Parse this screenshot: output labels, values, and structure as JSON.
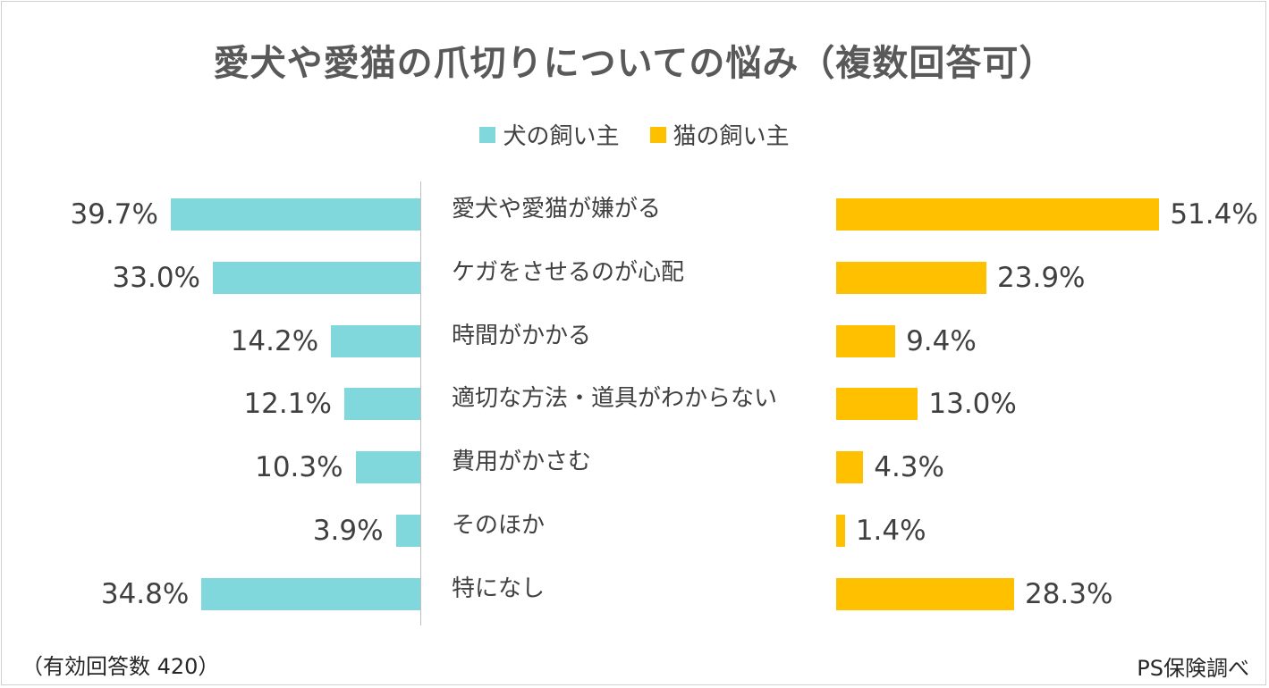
{
  "chart_data": {
    "type": "bar",
    "orientation": "horizontal-butterfly",
    "title": "愛犬や愛猫の爪切りについての悩み（複数回答可）",
    "categories": [
      "愛犬や愛猫が嫌がる",
      "ケガをさせるのが心配",
      "時間がかかる",
      "適切な方法・道具がわからない",
      "費用がかさむ",
      "そのほか",
      "特になし"
    ],
    "series": [
      {
        "name": "犬の飼い主",
        "color": "#81d8dc",
        "values": [
          39.7,
          33.0,
          14.2,
          12.1,
          10.3,
          3.9,
          34.8
        ],
        "labels": [
          "39.7%",
          "33.0%",
          "14.2%",
          "12.1%",
          "10.3%",
          "3.9%",
          "34.8%"
        ]
      },
      {
        "name": "猫の飼い主",
        "color": "#ffc000",
        "values": [
          51.4,
          23.9,
          9.4,
          13.0,
          4.3,
          1.4,
          28.3
        ],
        "labels": [
          "51.4%",
          "23.9%",
          "9.4%",
          "13.0%",
          "4.3%",
          "1.4%",
          "28.3%"
        ]
      }
    ],
    "legend_position": "top-center",
    "unit": "%"
  },
  "footnote": "（有効回答数 420）",
  "source": "PS保険調べ"
}
